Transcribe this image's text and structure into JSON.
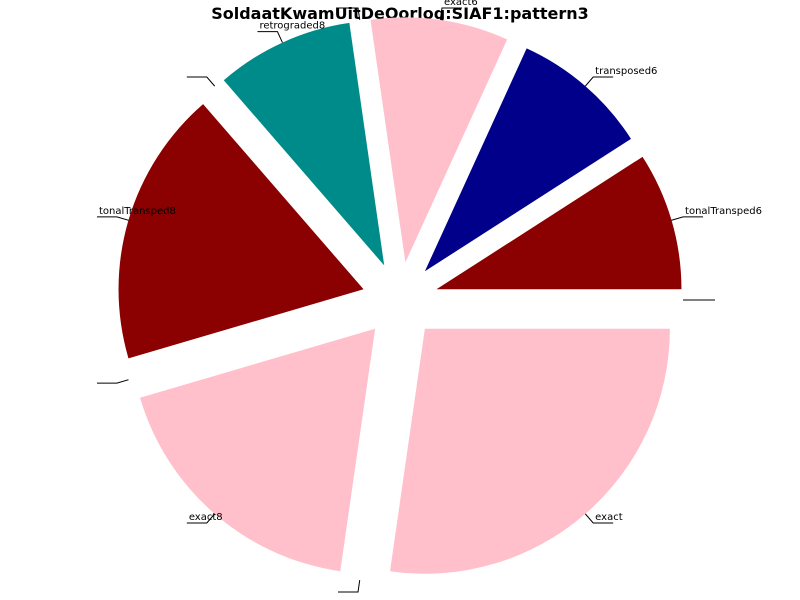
{
  "chart_data": {
    "type": "pie",
    "title": "SoldaatKwamUitDeOorlog:SIAF1:pattern3",
    "slices": [
      {
        "label": "tonalTransped6",
        "value": 1,
        "color": "#8b0000"
      },
      {
        "label": "transposed6",
        "value": 1,
        "color": "#00008b"
      },
      {
        "label": "exact6",
        "value": 1,
        "color": "#ffc0cb"
      },
      {
        "label": "",
        "value": 0,
        "color": "#000000"
      },
      {
        "label": "retrograded8",
        "value": 1,
        "color": "#008b8b"
      },
      {
        "label": "",
        "value": 0,
        "color": "#000000"
      },
      {
        "label": "tonalTransped8",
        "value": 2,
        "color": "#8b0000"
      },
      {
        "label": "",
        "value": 0,
        "color": "#000000"
      },
      {
        "label": "exact8",
        "value": 2,
        "color": "#ffc0cb"
      },
      {
        "label": "",
        "value": 0,
        "color": "#000000"
      },
      {
        "label": "exact",
        "value": 3,
        "color": "#ffc0cb"
      },
      {
        "label": "",
        "value": 0,
        "color": "#000000"
      }
    ],
    "legend": "none"
  }
}
